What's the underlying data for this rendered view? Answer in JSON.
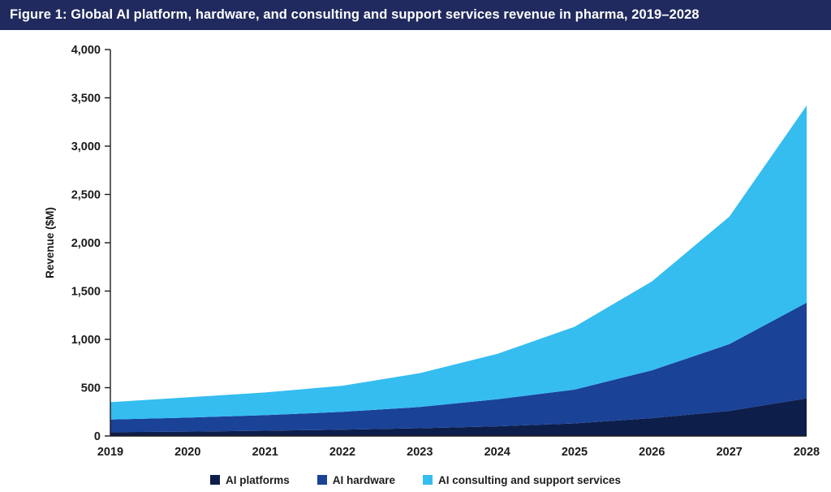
{
  "header": {
    "title": "Figure 1: Global AI platform, hardware, and consulting and support services revenue in pharma, 2019–2028"
  },
  "chart_data": {
    "type": "area",
    "stacked": true,
    "title": "Figure 1: Global AI platform, hardware, and consulting and support services revenue in pharma, 2019–2028",
    "xlabel": "",
    "ylabel": "Revenue ($M)",
    "ylim": [
      0,
      4000
    ],
    "ytick_step": 500,
    "ytick_labels": [
      "0",
      "500",
      "1,000",
      "1,500",
      "2,000",
      "2,500",
      "3,000",
      "3,500",
      "4,000"
    ],
    "x_labels": [
      "2019",
      "2020",
      "2021",
      "2022",
      "2023",
      "2024",
      "2025",
      "2026",
      "2027",
      "2028"
    ],
    "grid": false,
    "legend_position": "bottom",
    "axis_color": "#1b1b1b",
    "tick_color": "#1b1b1b",
    "series": [
      {
        "name": "AI platforms",
        "color": "#0d1e4a",
        "values": [
          40,
          45,
          55,
          65,
          80,
          100,
          130,
          185,
          260,
          390
        ]
      },
      {
        "name": "AI hardware",
        "color": "#1a4297",
        "values": [
          130,
          145,
          160,
          185,
          220,
          280,
          350,
          495,
          690,
          990
        ]
      },
      {
        "name": "AI consulting and support services",
        "color": "#35bdf0",
        "values": [
          180,
          210,
          235,
          270,
          350,
          470,
          650,
          920,
          1320,
          2040
        ]
      }
    ],
    "totals_by_year": [
      350,
      400,
      450,
      520,
      650,
      850,
      1130,
      1600,
      2270,
      3420
    ]
  }
}
